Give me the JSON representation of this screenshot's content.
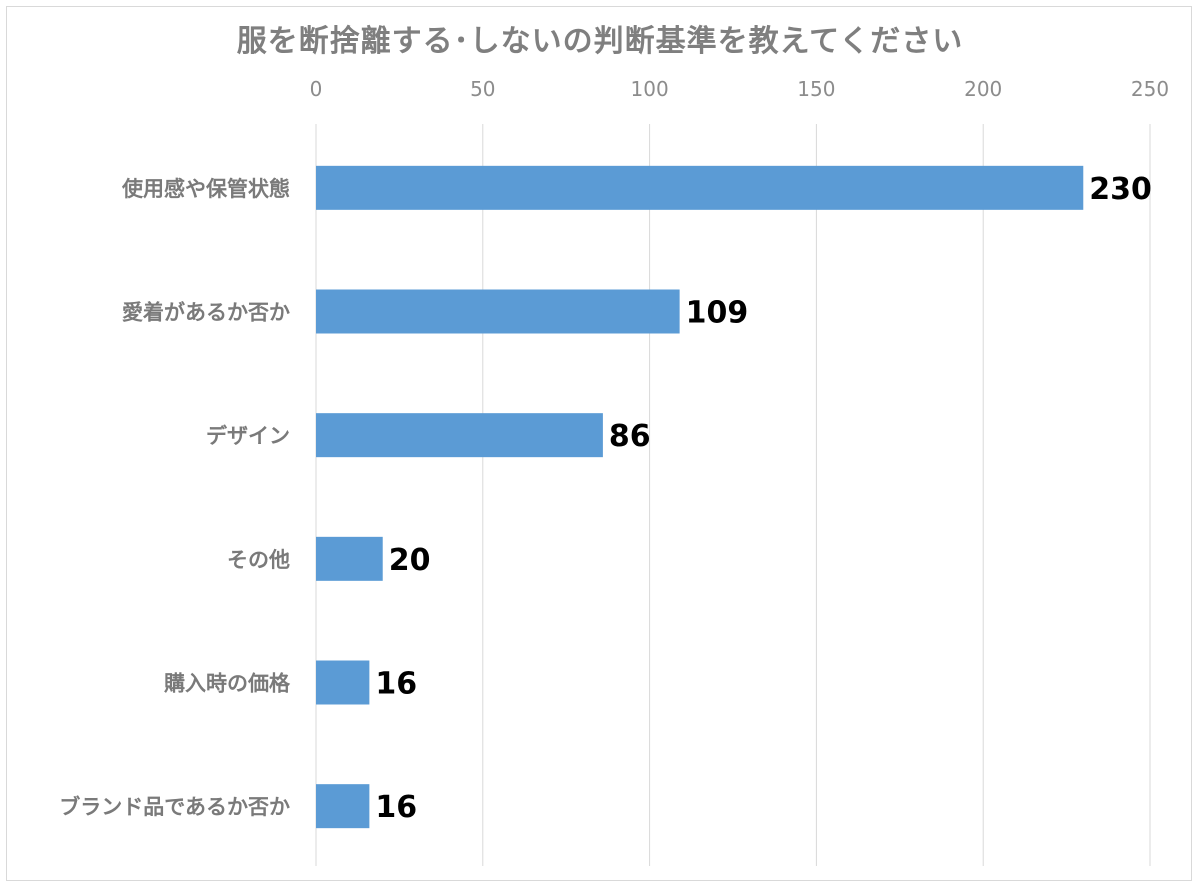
{
  "chart_data": {
    "type": "bar",
    "orientation": "horizontal",
    "title": "服を断捨離する･しないの判断基準を教えてください",
    "categories": [
      "使用感や保管状態",
      "愛着があるか否か",
      "デザイン",
      "その他",
      "購入時の価格",
      "ブランド品であるか否か"
    ],
    "values": [
      230,
      109,
      86,
      20,
      16,
      16
    ],
    "xlim": [
      0,
      250
    ],
    "xticks": [
      0,
      50,
      100,
      150,
      200,
      250
    ],
    "xaxis_position": "top",
    "grid": true,
    "data_labels": true,
    "bar_color": "#5b9bd5",
    "grid_color": "#d9d9d9"
  }
}
